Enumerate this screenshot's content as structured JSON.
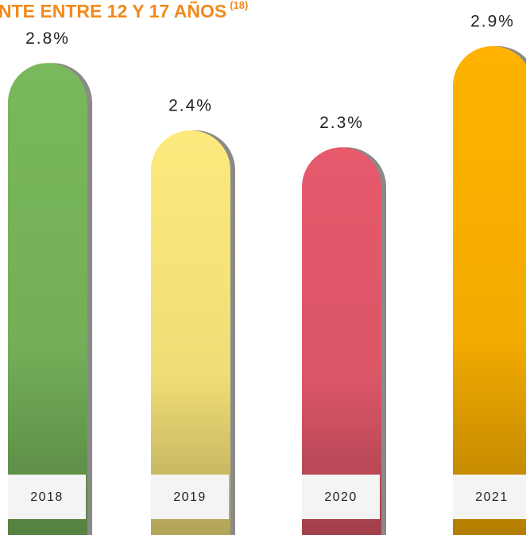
{
  "chart_data": {
    "type": "bar",
    "title": "NTE ENTRE 12 Y 17 AÑOS",
    "title_note": "(18)",
    "categories": [
      "2018",
      "2019",
      "2020",
      "2021"
    ],
    "values": [
      2.8,
      2.4,
      2.3,
      2.9
    ],
    "value_labels": [
      "2.8%",
      "2.4%",
      "2.3%",
      "2.9%"
    ],
    "colors": [
      "#79b85c",
      "#fde97c",
      "#e65a6c",
      "#ffb300"
    ]
  }
}
